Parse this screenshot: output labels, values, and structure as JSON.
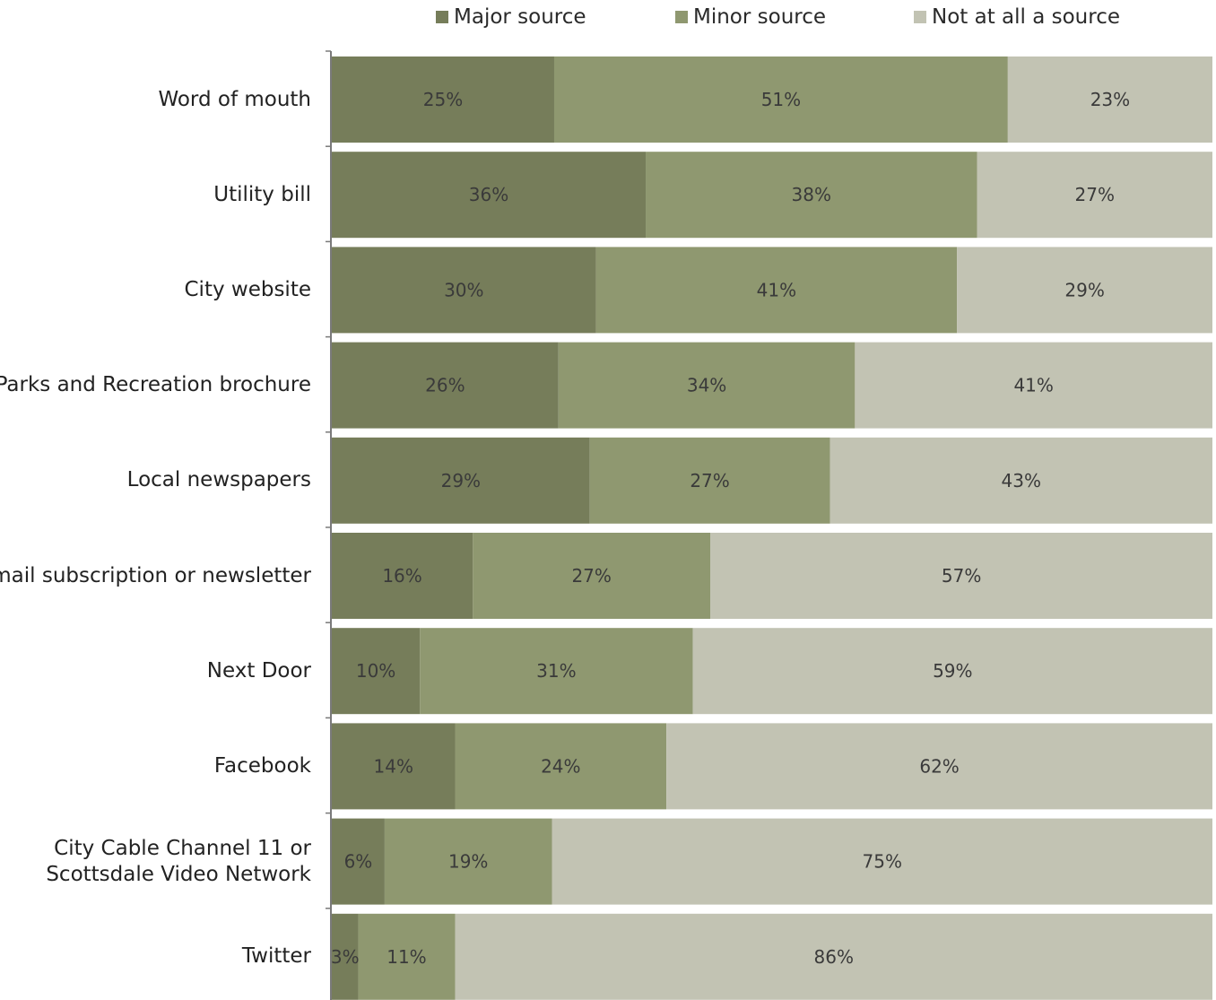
{
  "chart_data": {
    "type": "bar",
    "orientation": "horizontal",
    "stacked": true,
    "categories": [
      "Word of mouth",
      "Utility bill",
      "City website",
      "Parks and Recreation brochure",
      "Local newspapers",
      "Email subscription or newsletter",
      "Next Door",
      "Facebook",
      "City Cable Channel 11 or\nScottsdale Video Network",
      "Twitter"
    ],
    "category_lines": [
      [
        "Word of mouth"
      ],
      [
        "Utility bill"
      ],
      [
        "City website"
      ],
      [
        "Parks and Recreation brochure"
      ],
      [
        "Local newspapers"
      ],
      [
        "Email subscription or newsletter"
      ],
      [
        "Next Door"
      ],
      [
        "Facebook"
      ],
      [
        "City Cable Channel 11 or",
        "Scottsdale Video Network"
      ],
      [
        "Twitter"
      ]
    ],
    "series": [
      {
        "name": "Major source",
        "color": "#767d5a",
        "values": [
          25,
          36,
          30,
          26,
          29,
          16,
          10,
          14,
          6,
          3
        ],
        "labels": [
          "25%",
          "36%",
          "30%",
          "26%",
          "29%",
          "16%",
          "10%",
          "14%",
          "6%",
          "3%"
        ]
      },
      {
        "name": "Minor source",
        "color": "#8f9870",
        "values": [
          51,
          38,
          41,
          34,
          27,
          27,
          31,
          24,
          19,
          11
        ],
        "labels": [
          "51%",
          "38%",
          "41%",
          "34%",
          "27%",
          "27%",
          "31%",
          "24%",
          "19%",
          "11%"
        ]
      },
      {
        "name": "Not at all a source",
        "color": "#c2c3b3",
        "values": [
          23,
          27,
          29,
          41,
          43,
          57,
          59,
          62,
          75,
          86
        ],
        "labels": [
          "23%",
          "27%",
          "29%",
          "41%",
          "43%",
          "57%",
          "59%",
          "62%",
          "75%",
          "86%"
        ]
      }
    ],
    "xlim": [
      0,
      100
    ],
    "grid": false,
    "legend_position": "top"
  }
}
